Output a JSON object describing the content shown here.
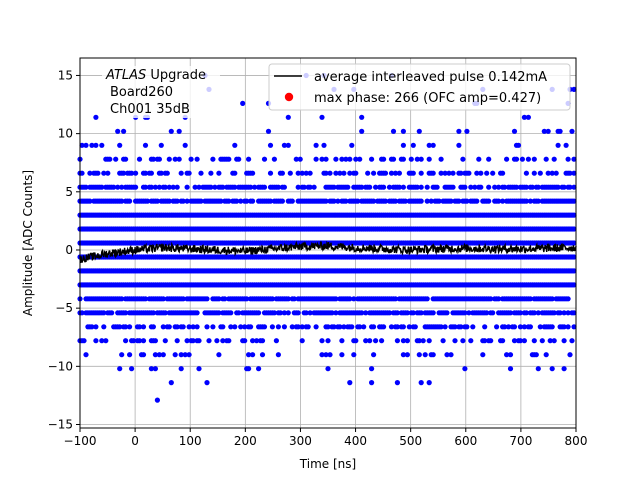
{
  "chart_data": {
    "type": "scatter",
    "xlabel": "Time [ns]",
    "ylabel": "Amplitude [ADC Counts]",
    "xlim": [
      -100,
      800
    ],
    "ylim": [
      -15.3,
      16.5
    ],
    "grid": true,
    "legend_position": "top-right",
    "x_ticks": [
      -100,
      0,
      100,
      200,
      300,
      400,
      500,
      600,
      700,
      800
    ],
    "x_tick_labels": [
      "−100",
      "0",
      "100",
      "200",
      "300",
      "400",
      "500",
      "600",
      "700",
      "800"
    ],
    "y_ticks": [
      -15,
      -10,
      -5,
      0,
      5,
      10,
      15
    ],
    "y_tick_labels": [
      "−15",
      "−10",
      "−5",
      "0",
      "5",
      "10",
      "15"
    ],
    "annotation": {
      "italic": "ATLAS",
      "rest": " Upgrade",
      "line2": "Board260",
      "line3": "Ch001 35dB"
    },
    "legend": {
      "line_label": "average interleaved pulse 0.142mA",
      "marker_label": "max phase: 266 (OFC amp=0.427)"
    },
    "colors": {
      "scatter": "#0000ff",
      "average_line": "#000000",
      "max_phase_marker": "#ff0000",
      "grid": "#b0b0b0"
    },
    "scatter_levels": [
      {
        "y": 15.0,
        "density": 0.01
      },
      {
        "y": 13.8,
        "density": 0.02
      },
      {
        "y": 12.6,
        "density": 0.02
      },
      {
        "y": 11.4,
        "density": 0.03
      },
      {
        "y": 10.2,
        "density": 0.05
      },
      {
        "y": 9.0,
        "density": 0.1
      },
      {
        "y": 7.8,
        "density": 0.22
      },
      {
        "y": 6.6,
        "density": 0.4
      },
      {
        "y": 5.4,
        "density": 0.65
      },
      {
        "y": 4.2,
        "density": 0.85
      },
      {
        "y": 3.0,
        "density": 1.0
      },
      {
        "y": 1.8,
        "density": 1.0
      },
      {
        "y": 0.6,
        "density": 1.0
      },
      {
        "y": -0.6,
        "density": 1.0
      },
      {
        "y": -1.8,
        "density": 1.0
      },
      {
        "y": -3.0,
        "density": 1.0
      },
      {
        "y": -4.2,
        "density": 0.9
      },
      {
        "y": -5.4,
        "density": 0.75
      },
      {
        "y": -6.6,
        "density": 0.5
      },
      {
        "y": -7.8,
        "density": 0.3
      },
      {
        "y": -9.0,
        "density": 0.14
      },
      {
        "y": -10.2,
        "density": 0.05
      },
      {
        "y": -11.4,
        "density": 0.02
      },
      {
        "y": -12.9,
        "density": 0.005
      }
    ],
    "scatter_x_range": [
      -100,
      800
    ],
    "average_pulse": {
      "x_range": [
        -100,
        800
      ],
      "segments": [
        {
          "x": -100,
          "y": -0.8
        },
        {
          "x": -50,
          "y": -0.3
        },
        {
          "x": 0,
          "y": 0.0
        },
        {
          "x": 50,
          "y": 0.2
        },
        {
          "x": 100,
          "y": 0.1
        },
        {
          "x": 150,
          "y": 0.0
        },
        {
          "x": 200,
          "y": -0.1
        },
        {
          "x": 250,
          "y": 0.1
        },
        {
          "x": 300,
          "y": 0.3
        },
        {
          "x": 350,
          "y": 0.35
        },
        {
          "x": 400,
          "y": 0.2
        },
        {
          "x": 450,
          "y": 0.1
        },
        {
          "x": 500,
          "y": 0.0
        },
        {
          "x": 550,
          "y": 0.1
        },
        {
          "x": 600,
          "y": 0.15
        },
        {
          "x": 650,
          "y": 0.1
        },
        {
          "x": 700,
          "y": 0.1
        },
        {
          "x": 750,
          "y": 0.15
        },
        {
          "x": 800,
          "y": 0.2
        }
      ],
      "noise_amplitude": 0.35
    }
  }
}
